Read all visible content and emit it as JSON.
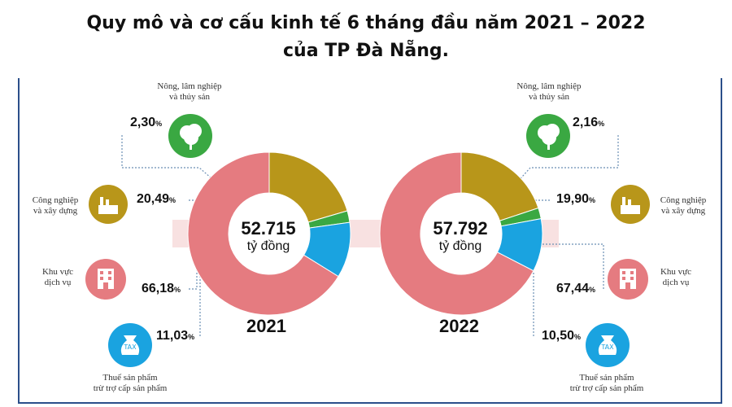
{
  "title_line1": "Quy mô và cơ cấu kinh tế 6 tháng đầu năm 2021 – 2022",
  "title_line2": "của TP Đà Nẵng.",
  "unit_percent": "%",
  "categories": {
    "agriculture": {
      "l1": "Nông, lâm nghiệp",
      "l2": "và thủy sản"
    },
    "industry": {
      "l1": "Công nghiệp",
      "l2": "và xây dựng"
    },
    "services": {
      "l1": "Khu vực",
      "l2": "dịch vụ"
    },
    "tax": {
      "l1": "Thuế sản phẩm",
      "l2": "trừ trợ cấp sản phẩm"
    }
  },
  "icons": {
    "agriculture": "tree-icon",
    "industry": "factory-icon",
    "services": "building-icon",
    "tax": "tax-bag-icon"
  },
  "colors": {
    "agriculture": "#3aa842",
    "industry": "#b8961a",
    "services": "#e57b80",
    "tax": "#1aa3e0"
  },
  "chart_data": [
    {
      "type": "pie",
      "year": "2021",
      "total_label": "52.715",
      "total_unit": "tỷ đồng",
      "categories": [
        "Nông, lâm nghiệp và thủy sản",
        "Công nghiệp và xây dựng",
        "Khu vực dịch vụ",
        "Thuế sản phẩm trừ trợ cấp sản phẩm"
      ],
      "values": [
        2.3,
        20.49,
        66.18,
        11.03
      ],
      "value_labels": [
        "2,30",
        "20,49",
        "66,18",
        "11,03"
      ]
    },
    {
      "type": "pie",
      "year": "2022",
      "total_label": "57.792",
      "total_unit": "tỷ đồng",
      "categories": [
        "Nông, lâm nghiệp và thủy sản",
        "Công nghiệp và xây dựng",
        "Khu vực dịch vụ",
        "Thuế sản phẩm trừ trợ cấp sản phẩm"
      ],
      "values": [
        2.16,
        19.9,
        67.44,
        10.5
      ],
      "value_labels": [
        "2,16",
        "19,90",
        "67,44",
        "10,50"
      ]
    }
  ]
}
